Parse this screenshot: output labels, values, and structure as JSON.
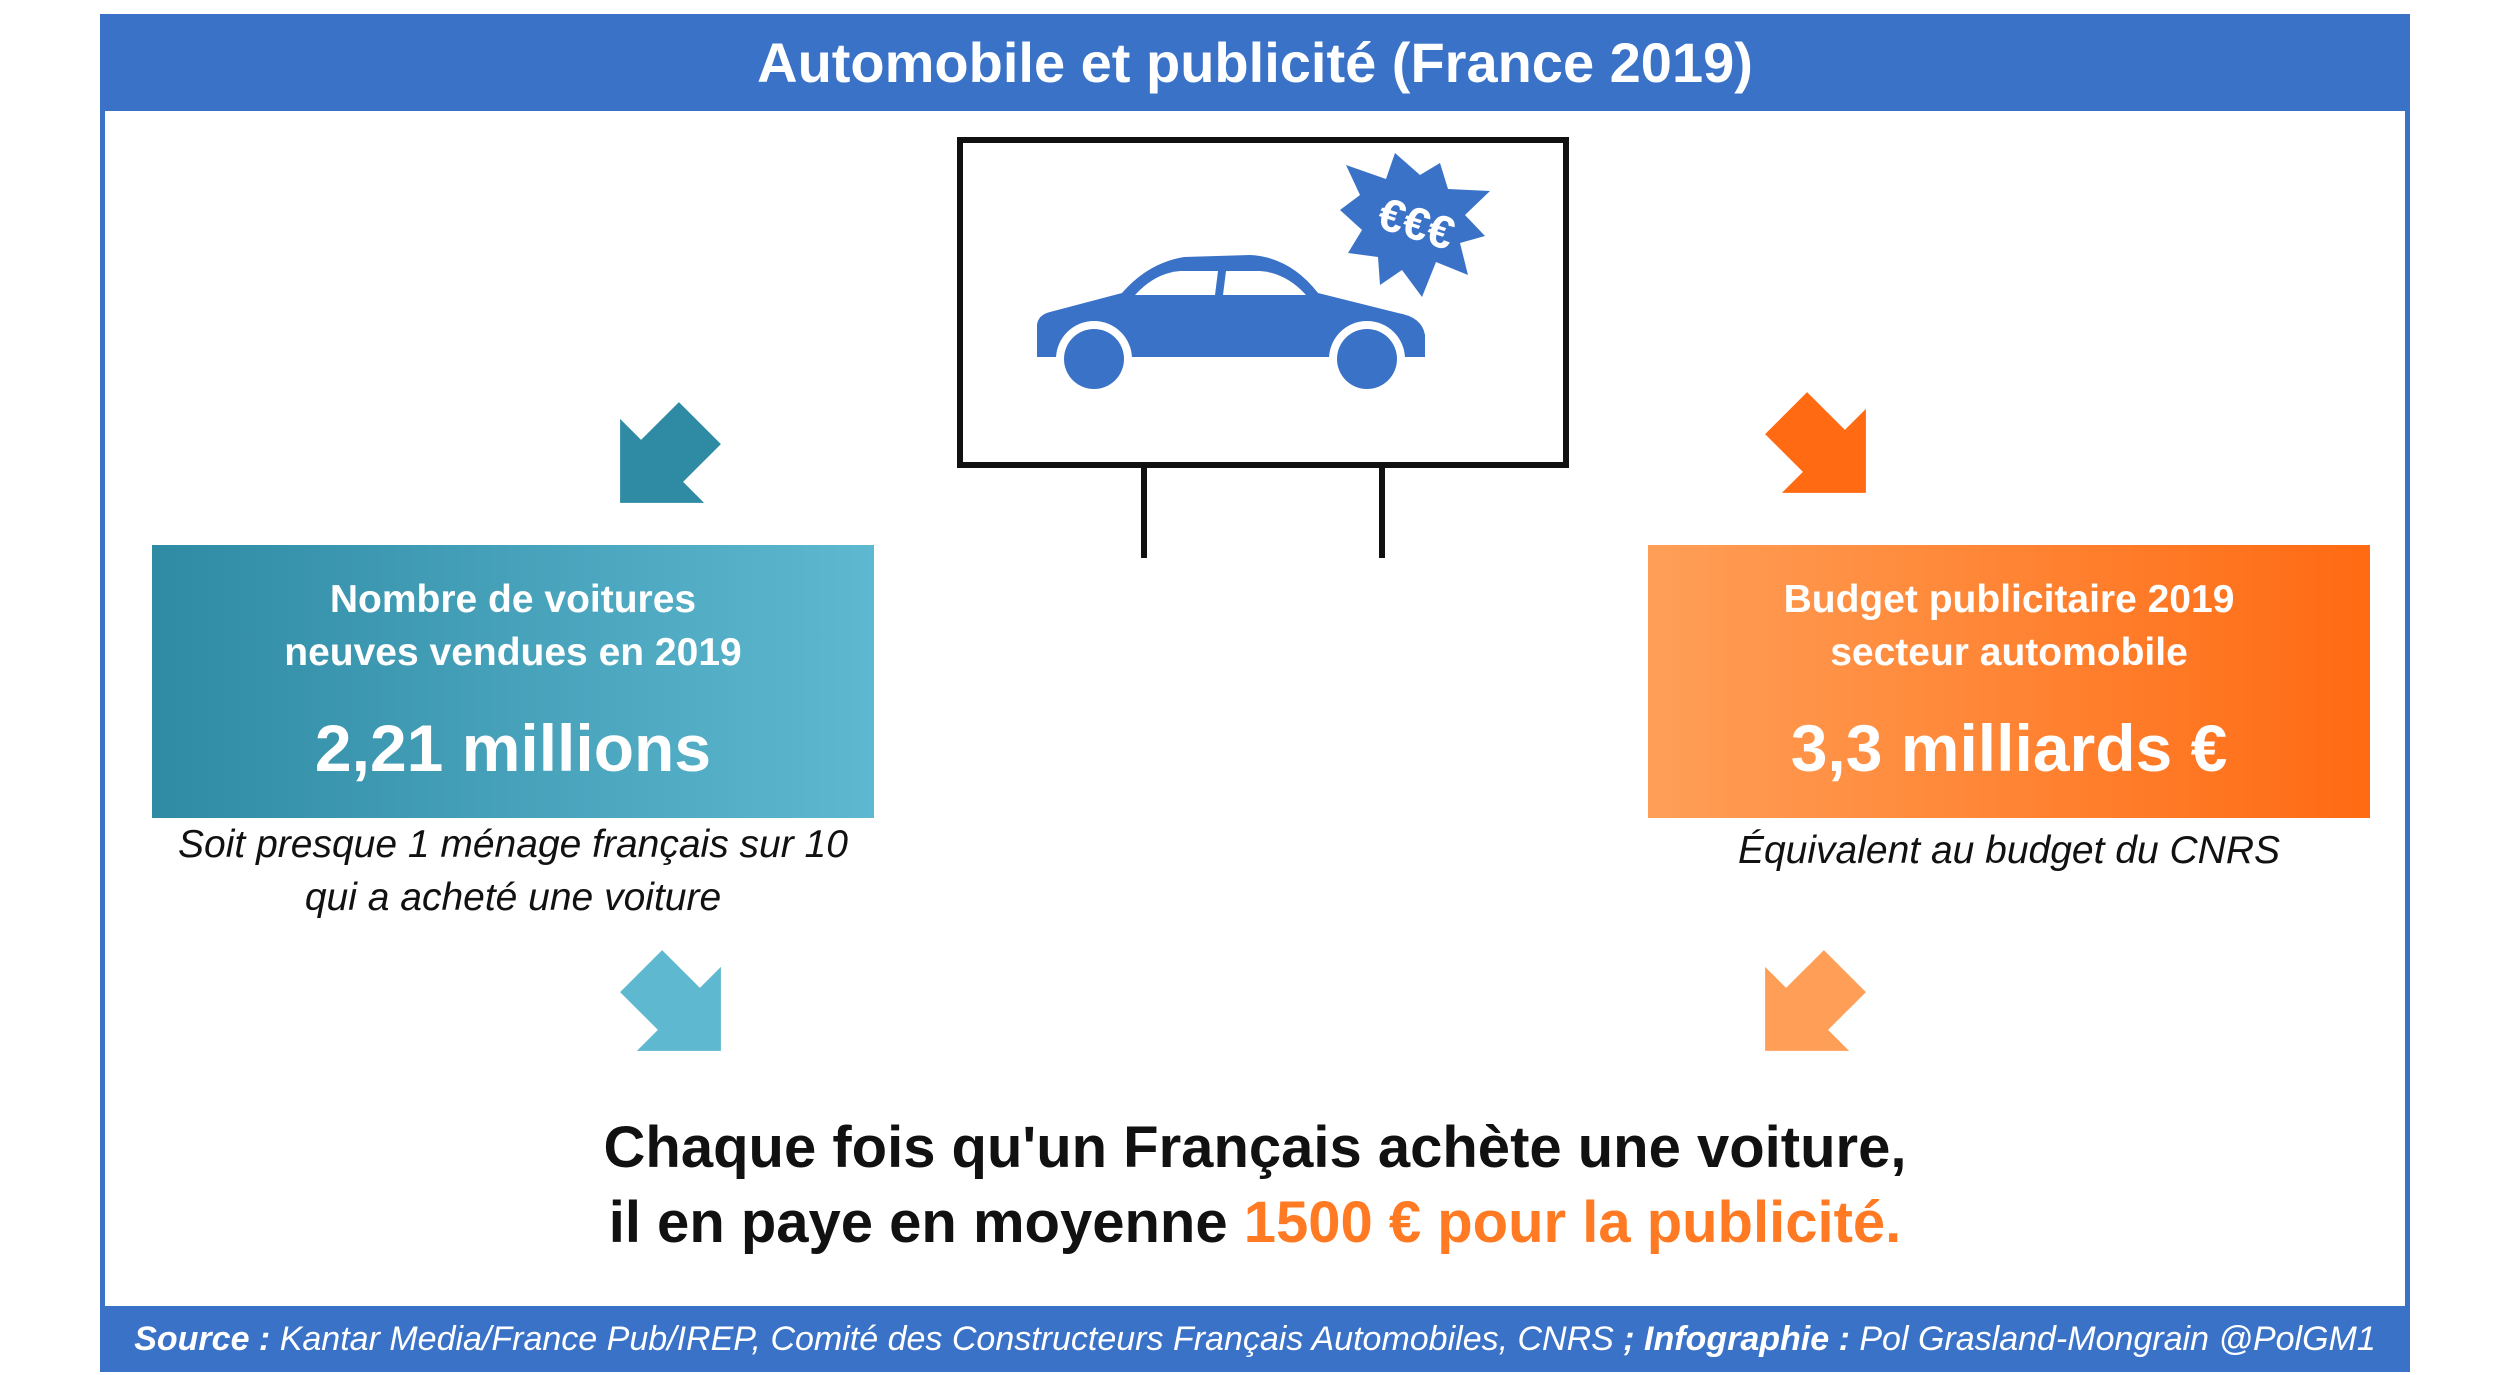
{
  "header": {
    "title": "Automobile et publicité (France 2019)"
  },
  "billboard": {
    "badge_text": "€€€"
  },
  "left_stat": {
    "label_line1": "Nombre de voitures",
    "label_line2": "neuves vendues en 2019",
    "value": "2,21 millions",
    "note_line1": "Soit presque 1 ménage français sur 10",
    "note_line2": "qui a acheté une voiture"
  },
  "right_stat": {
    "label_line1": "Budget publicitaire 2019",
    "label_line2": "secteur automobile",
    "value": "3,3 milliards €",
    "note": "Équivalent au budget du CNRS"
  },
  "conclusion": {
    "line1": "Chaque fois qu'un Français achète une voiture,",
    "line2_start": "il en paye en moyenne ",
    "line2_highlight": "1500 € pour la publicité."
  },
  "footer": {
    "source_label": "Source :",
    "source_text": " Kantar Media/France Pub/IREP, Comité des Constructeurs Français Automobiles, CNRS ",
    "separator": ";",
    "infographic_label": " Infographie :",
    "infographic_text": " Pol Grasland-Mongrain @PolGM1"
  },
  "colors": {
    "primary_blue": "#3a72c8",
    "teal": "#2f8aa3",
    "light_blue": "#5db8d0",
    "orange": "#ff6a12",
    "light_orange": "#ff9f57",
    "accent_orange": "#ff7a22"
  },
  "icons": [
    "car-icon",
    "starburst-badge-icon",
    "billboard-icon",
    "arrow-down-left-icon",
    "arrow-down-right-icon"
  ]
}
